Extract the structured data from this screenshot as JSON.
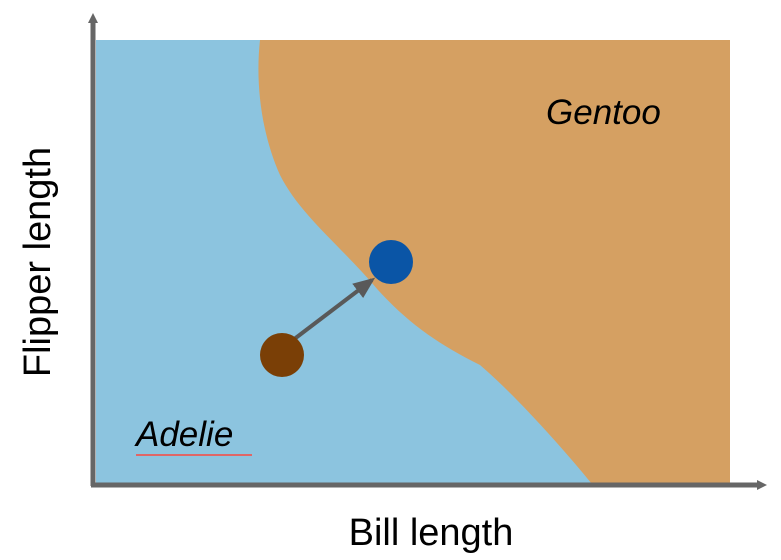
{
  "axes": {
    "x_label": "Bill length",
    "y_label": "Flipper length",
    "axis_color": "#666666"
  },
  "regions": {
    "adelie": {
      "label": "Adelie",
      "color": "#8cc4df",
      "underline_color": "#e06666"
    },
    "gentoo": {
      "label": "Gentoo",
      "color": "#d5a062"
    }
  },
  "points": {
    "origin": {
      "color": "#7a3f06"
    },
    "target": {
      "color": "#0a55a6"
    }
  },
  "arrow": {
    "color": "#595959"
  }
}
